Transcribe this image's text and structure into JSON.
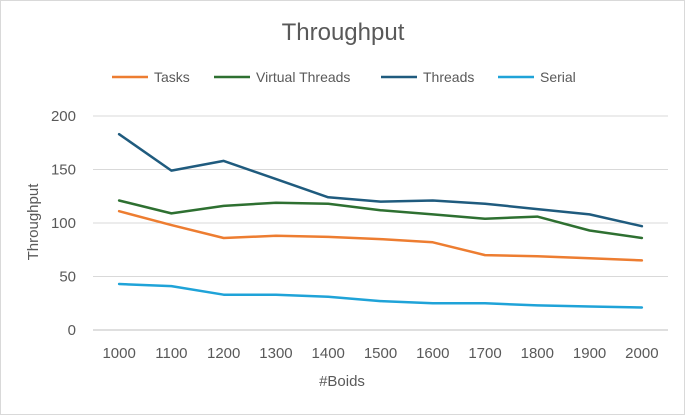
{
  "chart_data": {
    "type": "line",
    "title": "Throughput",
    "xlabel": "#Boids",
    "ylabel": "Throughput",
    "categories": [
      "1000",
      "1100",
      "1200",
      "1300",
      "1400",
      "1500",
      "1600",
      "1700",
      "1800",
      "1900",
      "2000"
    ],
    "ylim": [
      0,
      200
    ],
    "yticks": [
      "0",
      "50",
      "100",
      "150",
      "200"
    ],
    "grid": true,
    "legend_position": "top",
    "series": [
      {
        "name": "Tasks",
        "color": "#ED7D31",
        "values": [
          111,
          98,
          86,
          88,
          87,
          85,
          82,
          70,
          69,
          67,
          65
        ]
      },
      {
        "name": "Virtual Threads",
        "color": "#2E7031",
        "values": [
          121,
          109,
          116,
          119,
          118,
          112,
          108,
          104,
          106,
          93,
          86
        ]
      },
      {
        "name": "Threads",
        "color": "#1F5B7E",
        "values": [
          183,
          149,
          158,
          141,
          124,
          120,
          121,
          118,
          113,
          108,
          97
        ]
      },
      {
        "name": "Serial",
        "color": "#1FA3D8",
        "values": [
          43,
          41,
          33,
          33,
          31,
          27,
          25,
          25,
          23,
          22,
          21
        ]
      }
    ]
  }
}
